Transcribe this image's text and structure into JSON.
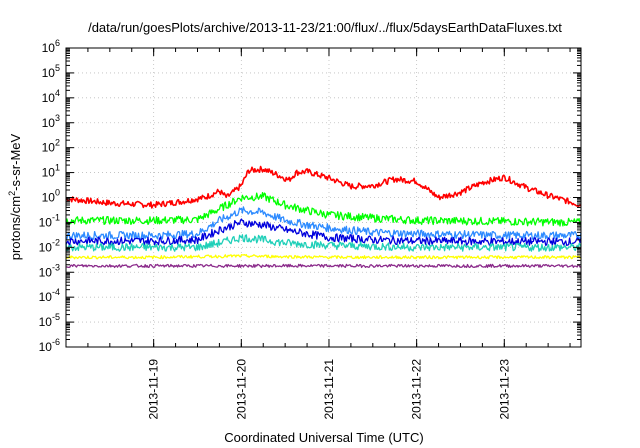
{
  "chart_data": {
    "type": "line",
    "title": "/data/run/goesPlots/archive/2013-11-23/21:00/flux/../flux/5daysEarthDataFluxes.txt",
    "xlabel": "Coordinated Universal Time (UTC)",
    "ylabel_parts": {
      "base": "protons/cm",
      "exp": "2",
      "rest": "-s-sr-MeV"
    },
    "y_scale": "log",
    "ylim": [
      1e-06,
      1000000.0
    ],
    "y_ticks": [
      {
        "base": "10",
        "exp": "-6"
      },
      {
        "base": "10",
        "exp": "-5"
      },
      {
        "base": "10",
        "exp": "-4"
      },
      {
        "base": "10",
        "exp": "-3"
      },
      {
        "base": "10",
        "exp": "-2"
      },
      {
        "base": "10",
        "exp": "-1"
      },
      {
        "base": "10",
        "exp": "0"
      },
      {
        "base": "10",
        "exp": "1"
      },
      {
        "base": "10",
        "exp": "2"
      },
      {
        "base": "10",
        "exp": "3"
      },
      {
        "base": "10",
        "exp": "4"
      },
      {
        "base": "10",
        "exp": "5"
      },
      {
        "base": "10",
        "exp": "6"
      }
    ],
    "xlim": [
      "2013-11-18 00:00",
      "2013-11-23 21:00"
    ],
    "x_ticks": [
      "2013-11-19",
      "2013-11-20",
      "2013-11-21",
      "2013-11-22",
      "2013-11-23"
    ],
    "grid": true,
    "legend": "none",
    "series": [
      {
        "color": "#ff0000",
        "x": [
          "2013-11-18 00:00",
          "2013-11-18 12:00",
          "2013-11-19 00:00",
          "2013-11-19 08:00",
          "2013-11-19 14:00",
          "2013-11-19 18:00",
          "2013-11-19 20:00",
          "2013-11-20 00:00",
          "2013-11-20 02:00",
          "2013-11-20 06:00",
          "2013-11-20 10:00",
          "2013-11-20 13:00",
          "2013-11-20 15:00",
          "2013-11-20 18:00",
          "2013-11-21 00:00",
          "2013-11-21 06:00",
          "2013-11-21 12:00",
          "2013-11-21 18:00",
          "2013-11-22 00:00",
          "2013-11-22 06:00",
          "2013-11-22 12:00",
          "2013-11-22 18:00",
          "2013-11-23 00:00",
          "2013-11-23 06:00",
          "2013-11-23 12:00",
          "2013-11-23 21:00"
        ],
        "y": [
          0.9,
          0.6,
          0.5,
          0.7,
          1.0,
          1.8,
          1.0,
          3.0,
          12.0,
          14.0,
          8.0,
          5.0,
          10.0,
          11.0,
          6.0,
          2.8,
          3.0,
          5.5,
          4.5,
          1.0,
          1.6,
          4.0,
          6.5,
          2.5,
          1.2,
          0.5
        ]
      },
      {
        "color": "#00ff00",
        "x": [
          "2013-11-18 00:00",
          "2013-11-19 00:00",
          "2013-11-19 12:00",
          "2013-11-19 18:00",
          "2013-11-20 00:00",
          "2013-11-20 06:00",
          "2013-11-20 12:00",
          "2013-11-20 18:00",
          "2013-11-21 00:00",
          "2013-11-21 12:00",
          "2013-11-22 00:00",
          "2013-11-23 00:00",
          "2013-11-23 21:00"
        ],
        "y": [
          0.12,
          0.12,
          0.13,
          0.35,
          1.0,
          1.1,
          0.5,
          0.3,
          0.2,
          0.15,
          0.12,
          0.11,
          0.1
        ]
      },
      {
        "color": "#2e8bff",
        "x": [
          "2013-11-18 00:00",
          "2013-11-19 00:00",
          "2013-11-19 12:00",
          "2013-11-19 18:00",
          "2013-11-20 00:00",
          "2013-11-20 06:00",
          "2013-11-20 12:00",
          "2013-11-20 18:00",
          "2013-11-21 00:00",
          "2013-11-21 12:00",
          "2013-11-22 00:00",
          "2013-11-23 00:00",
          "2013-11-23 21:00"
        ],
        "y": [
          0.03,
          0.03,
          0.035,
          0.12,
          0.3,
          0.25,
          0.12,
          0.08,
          0.06,
          0.04,
          0.035,
          0.03,
          0.03
        ]
      },
      {
        "color": "#0000dd",
        "x": [
          "2013-11-18 00:00",
          "2013-11-19 00:00",
          "2013-11-19 12:00",
          "2013-11-19 18:00",
          "2013-11-20 00:00",
          "2013-11-20 06:00",
          "2013-11-20 12:00",
          "2013-11-20 18:00",
          "2013-11-21 00:00",
          "2013-11-21 12:00",
          "2013-11-22 00:00",
          "2013-11-23 00:00",
          "2013-11-23 21:00"
        ],
        "y": [
          0.018,
          0.018,
          0.02,
          0.05,
          0.1,
          0.08,
          0.05,
          0.035,
          0.025,
          0.02,
          0.018,
          0.017,
          0.017
        ]
      },
      {
        "color": "#1fcfb8",
        "x": [
          "2013-11-18 00:00",
          "2013-11-19 00:00",
          "2013-11-19 12:00",
          "2013-11-19 18:00",
          "2013-11-20 00:00",
          "2013-11-20 06:00",
          "2013-11-20 12:00",
          "2013-11-21 00:00",
          "2013-11-22 00:00",
          "2013-11-23 00:00",
          "2013-11-23 21:00"
        ],
        "y": [
          0.01,
          0.01,
          0.01,
          0.015,
          0.025,
          0.02,
          0.015,
          0.012,
          0.01,
          0.01,
          0.01
        ]
      },
      {
        "color": "#ffff00",
        "x": [
          "2013-11-18 00:00",
          "2013-11-19 00:00",
          "2013-11-20 00:00",
          "2013-11-21 00:00",
          "2013-11-22 00:00",
          "2013-11-23 00:00",
          "2013-11-23 21:00"
        ],
        "y": [
          0.004,
          0.004,
          0.0045,
          0.004,
          0.004,
          0.004,
          0.004
        ]
      },
      {
        "color": "#8b2b8b",
        "x": [
          "2013-11-18 00:00",
          "2013-11-19 00:00",
          "2013-11-20 00:00",
          "2013-11-21 00:00",
          "2013-11-22 00:00",
          "2013-11-23 00:00",
          "2013-11-23 21:00"
        ],
        "y": [
          0.0018,
          0.0018,
          0.0018,
          0.0018,
          0.0018,
          0.0018,
          0.0018
        ]
      }
    ]
  }
}
